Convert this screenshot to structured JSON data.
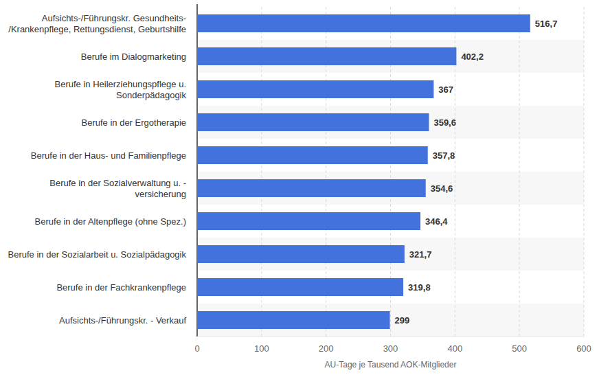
{
  "chart_data": {
    "type": "bar",
    "orientation": "horizontal",
    "categories": [
      "Aufsichts-/Führungskr. Gesundheits-/Krankenpflege, Rettungsdienst, Geburtshilfe",
      "Berufe im Dialogmarketing",
      "Berufe in Heilerziehungspflege u. Sonderpädagogik",
      "Berufe in der Ergotherapie",
      "Berufe in der Haus- und Familienpflege",
      "Berufe in der Sozialverwaltung u. -versicherung",
      "Berufe in der Altenpflege (ohne Spez.)",
      "Berufe in der Sozialarbeit u. Sozialpädagogik",
      "Berufe in der Fachkrankenpflege",
      "Aufsichts-/Führungskr. - Verkauf"
    ],
    "values": [
      516.7,
      402.2,
      367,
      359.6,
      357.8,
      354.6,
      346.4,
      321.7,
      319.8,
      299
    ],
    "value_labels": [
      "516,7",
      "402,2",
      "367",
      "359,6",
      "357,8",
      "354,6",
      "346,4",
      "321,7",
      "319,8",
      "299"
    ],
    "color": "#4372dc",
    "xlabel": "AU-Tage je Tausend AOK-Mitglieder",
    "xlim": [
      0,
      600
    ],
    "xticks": [
      0,
      100,
      200,
      300,
      400,
      500,
      600
    ],
    "grid": true,
    "data_labels": true
  }
}
